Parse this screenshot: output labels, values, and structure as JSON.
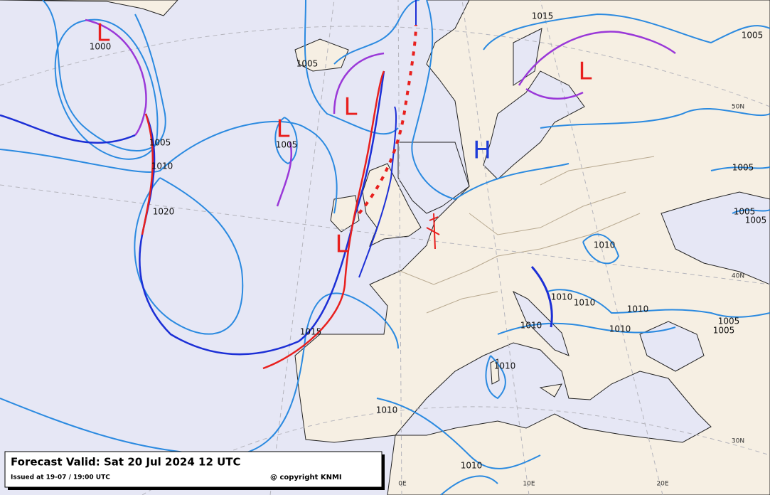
{
  "legend_box": {
    "title": "Forecast Valid:  Sat 20 Jul 2024 12 UTC",
    "issued": "Issued at 19-07 / 19:00 UTC",
    "copyright": "@ copyright KNMI"
  },
  "pressure_centers": [
    {
      "label": "L",
      "color": "#e8201e"
    },
    {
      "label": "L",
      "color": "#e8201e"
    },
    {
      "label": "L",
      "color": "#e8201e"
    },
    {
      "label": "L",
      "color": "#e8201e"
    },
    {
      "label": "L",
      "color": "#e8201e"
    },
    {
      "label": "H",
      "color": "#1e3cd8"
    }
  ],
  "isobar_labels": [
    "1000",
    "1005",
    "1015",
    "1005",
    "1010",
    "1005",
    "1020",
    "1005",
    "1005",
    "1005",
    "1005",
    "1010",
    "1010",
    "1010",
    "1010",
    "1010",
    "1010",
    "1005",
    "1005",
    "1015",
    "1010",
    "1010",
    "1010"
  ],
  "graticule_labels": [
    "50N",
    "40N",
    "30N",
    "0E",
    "10E",
    "20E"
  ]
}
